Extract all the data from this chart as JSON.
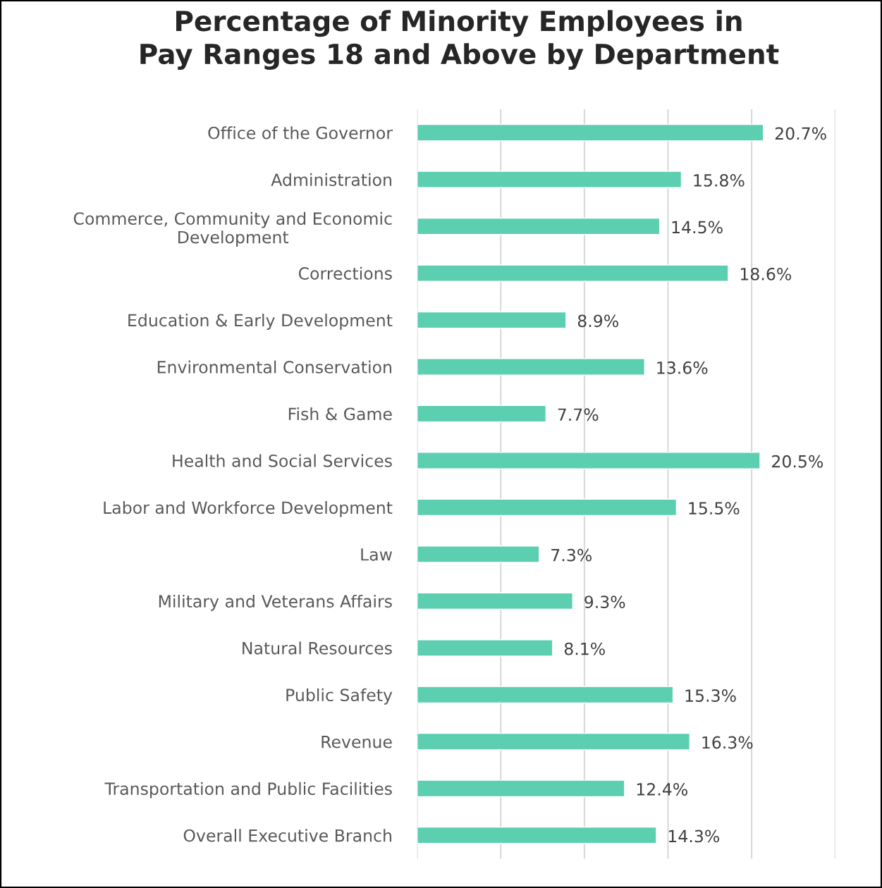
{
  "chart_data": {
    "type": "bar",
    "orientation": "horizontal",
    "title": "Percentage of Minority Employees in\nPay Ranges 18 and Above by Department",
    "categories": [
      "Office of the Governor",
      "Administration",
      "Commerce, Community and Economic\nDevelopment",
      "Corrections",
      "Education & Early Development",
      "Environmental Conservation",
      "Fish & Game",
      "Health and Social Services",
      "Labor and Workforce Development",
      "Law",
      "Military and Veterans Affairs",
      "Natural Resources",
      "Public Safety",
      "Revenue",
      "Transportation and Public Facilities",
      "Overall Executive Branch"
    ],
    "values": [
      20.7,
      15.8,
      14.5,
      18.6,
      8.9,
      13.6,
      7.7,
      20.5,
      15.5,
      7.3,
      9.3,
      8.1,
      15.3,
      16.3,
      12.4,
      14.3
    ],
    "value_labels": [
      "20.7%",
      "15.8%",
      "14.5%",
      "18.6%",
      "8.9%",
      "13.6%",
      "7.7%",
      "20.5%",
      "15.5%",
      "7.3%",
      "9.3%",
      "8.1%",
      "15.3%",
      "16.3%",
      "12.4%",
      "14.3%"
    ],
    "color": "#5ccfb0",
    "xlim": [
      0,
      25
    ],
    "xticks": [
      {
        "value": 0,
        "label": null
      },
      {
        "value": 5,
        "label": null
      },
      {
        "value": 10,
        "label": null
      },
      {
        "value": 15,
        "label": null
      },
      {
        "value": 20,
        "label": null
      },
      {
        "value": 25,
        "label": null
      }
    ],
    "tick_labels": "y",
    "grid": "x"
  }
}
